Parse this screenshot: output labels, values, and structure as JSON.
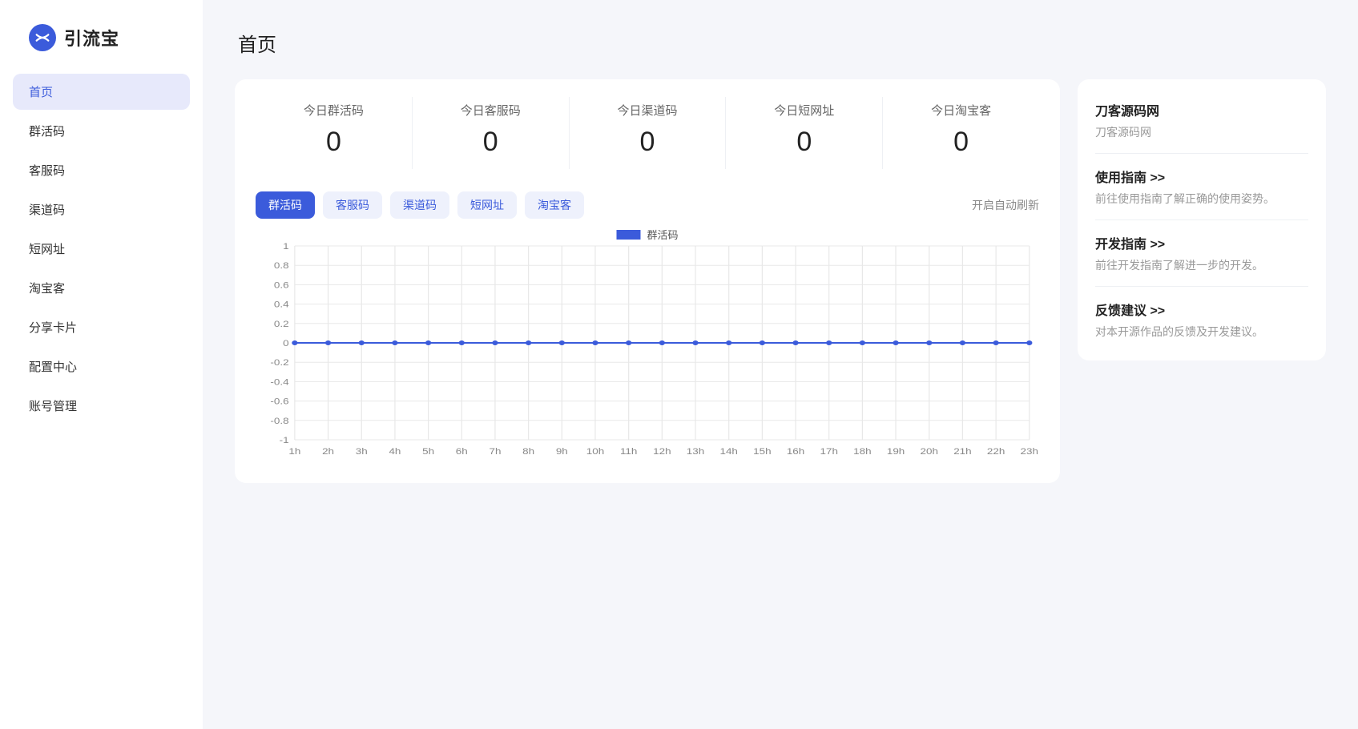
{
  "app_name": "引流宝",
  "page_title": "首页",
  "sidebar": {
    "items": [
      {
        "label": "首页",
        "active": true
      },
      {
        "label": "群活码",
        "active": false
      },
      {
        "label": "客服码",
        "active": false
      },
      {
        "label": "渠道码",
        "active": false
      },
      {
        "label": "短网址",
        "active": false
      },
      {
        "label": "淘宝客",
        "active": false
      },
      {
        "label": "分享卡片",
        "active": false
      },
      {
        "label": "配置中心",
        "active": false
      },
      {
        "label": "账号管理",
        "active": false
      }
    ]
  },
  "stats": [
    {
      "label": "今日群活码",
      "value": "0"
    },
    {
      "label": "今日客服码",
      "value": "0"
    },
    {
      "label": "今日渠道码",
      "value": "0"
    },
    {
      "label": "今日短网址",
      "value": "0"
    },
    {
      "label": "今日淘宝客",
      "value": "0"
    }
  ],
  "chart_tabs": [
    {
      "label": "群活码",
      "active": true
    },
    {
      "label": "客服码",
      "active": false
    },
    {
      "label": "渠道码",
      "active": false
    },
    {
      "label": "短网址",
      "active": false
    },
    {
      "label": "淘宝客",
      "active": false
    }
  ],
  "auto_refresh_label": "开启自动刷新",
  "chart": {
    "type": "line",
    "legend_label": "群活码",
    "legend_color": "#3b5bdb",
    "x_labels": [
      "1h",
      "2h",
      "3h",
      "4h",
      "5h",
      "6h",
      "7h",
      "8h",
      "9h",
      "10h",
      "11h",
      "12h",
      "13h",
      "14h",
      "15h",
      "16h",
      "17h",
      "18h",
      "19h",
      "20h",
      "21h",
      "22h",
      "23h"
    ],
    "y_ticks": [
      1.0,
      0.8,
      0.6,
      0.4,
      0.2,
      0,
      -0.2,
      -0.4,
      -0.6,
      -0.8,
      -1.0
    ],
    "ylim": [
      -1.0,
      1.0
    ],
    "values": [
      0,
      0,
      0,
      0,
      0,
      0,
      0,
      0,
      0,
      0,
      0,
      0,
      0,
      0,
      0,
      0,
      0,
      0,
      0,
      0,
      0,
      0,
      0
    ],
    "line_color": "#3b5bdb",
    "point_color": "#3b5bdb",
    "point_radius": 3,
    "grid_color": "#e8e8e8",
    "axis_text_color": "#888888",
    "background": "#ffffff"
  },
  "side_panel": [
    {
      "title": "刀客源码网",
      "desc": "刀客源码网"
    },
    {
      "title": "使用指南 >>",
      "desc": "前往使用指南了解正确的使用姿势。"
    },
    {
      "title": "开发指南 >>",
      "desc": "前往开发指南了解进一步的开发。"
    },
    {
      "title": "反馈建议 >>",
      "desc": "对本开源作品的反馈及开发建议。"
    }
  ],
  "colors": {
    "primary": "#3b5bdb",
    "nav_active_bg": "#e7e9fb",
    "tab_inactive_bg": "#eef1fc",
    "body_bg": "#f5f6fa",
    "card_bg": "#ffffff",
    "border": "#eef0f4",
    "text_muted": "#999999"
  }
}
